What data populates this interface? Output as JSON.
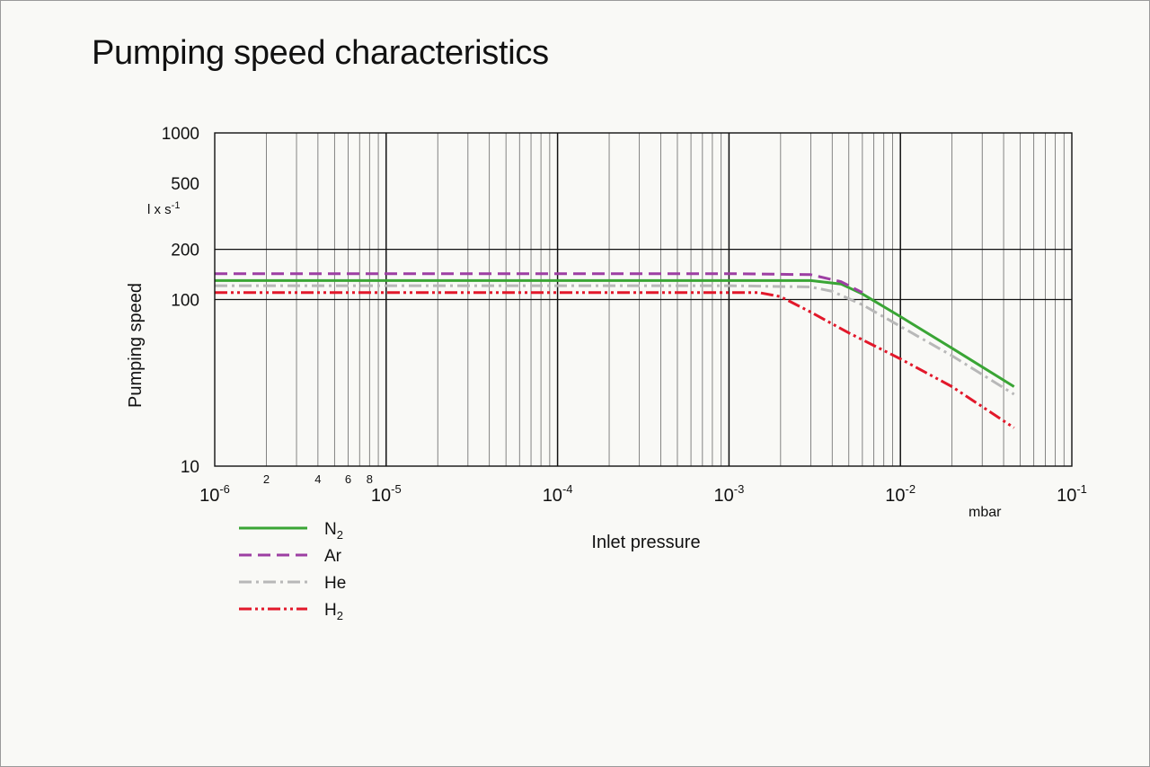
{
  "title": "Pumping speed characteristics",
  "chart_data": {
    "type": "line",
    "title": "Pumping speed characteristics",
    "xlabel": "Inlet pressure",
    "ylabel": "Pumping speed",
    "x_unit": "mbar",
    "y_unit": {
      "base": "l x s",
      "exp": "-1"
    },
    "x_scale": "log",
    "y_scale": "log",
    "xlim": [
      1e-06,
      0.1
    ],
    "ylim": [
      10,
      1000
    ],
    "grid": true,
    "legend_position": "bottom-left, below plot",
    "x_major_ticks": [
      {
        "base": "10",
        "exp": "-6"
      },
      {
        "base": "10",
        "exp": "-5"
      },
      {
        "base": "10",
        "exp": "-4"
      },
      {
        "base": "10",
        "exp": "-3"
      },
      {
        "base": "10",
        "exp": "-2"
      },
      {
        "base": "10",
        "exp": "-1"
      }
    ],
    "x_minor_labels": [
      "2",
      "4",
      "6",
      "8"
    ],
    "y_ticks": [
      "1000",
      "500",
      "200",
      "100",
      "10"
    ],
    "series": [
      {
        "name": "N",
        "sub": "2",
        "color": "#3aa535",
        "dash": "solid",
        "x": [
          1e-06,
          0.001,
          0.003,
          0.0045,
          0.006,
          0.01,
          0.02,
          0.046
        ],
        "y": [
          130,
          130,
          130,
          124,
          108,
          79,
          51,
          30
        ]
      },
      {
        "name": "Ar",
        "sub": "",
        "color": "#9d3fa3",
        "dash": "dash",
        "x": [
          1e-06,
          0.001,
          0.003,
          0.0045,
          0.006
        ],
        "y": [
          143,
          143,
          141,
          128,
          110
        ]
      },
      {
        "name": "He",
        "sub": "",
        "color": "#b8b8b8",
        "dash": "dash-dot",
        "x": [
          1e-06,
          0.001,
          0.003,
          0.004,
          0.006,
          0.01,
          0.02,
          0.046
        ],
        "y": [
          121,
          121,
          119,
          112,
          93,
          69,
          46,
          27
        ]
      },
      {
        "name": "H",
        "sub": "2",
        "color": "#e2182a",
        "dash": "dash-dot-dot",
        "x": [
          1e-06,
          0.0015,
          0.002,
          0.003,
          0.005,
          0.01,
          0.02,
          0.046
        ],
        "y": [
          110,
          110,
          104,
          84,
          63,
          44,
          30,
          17
        ]
      }
    ]
  }
}
